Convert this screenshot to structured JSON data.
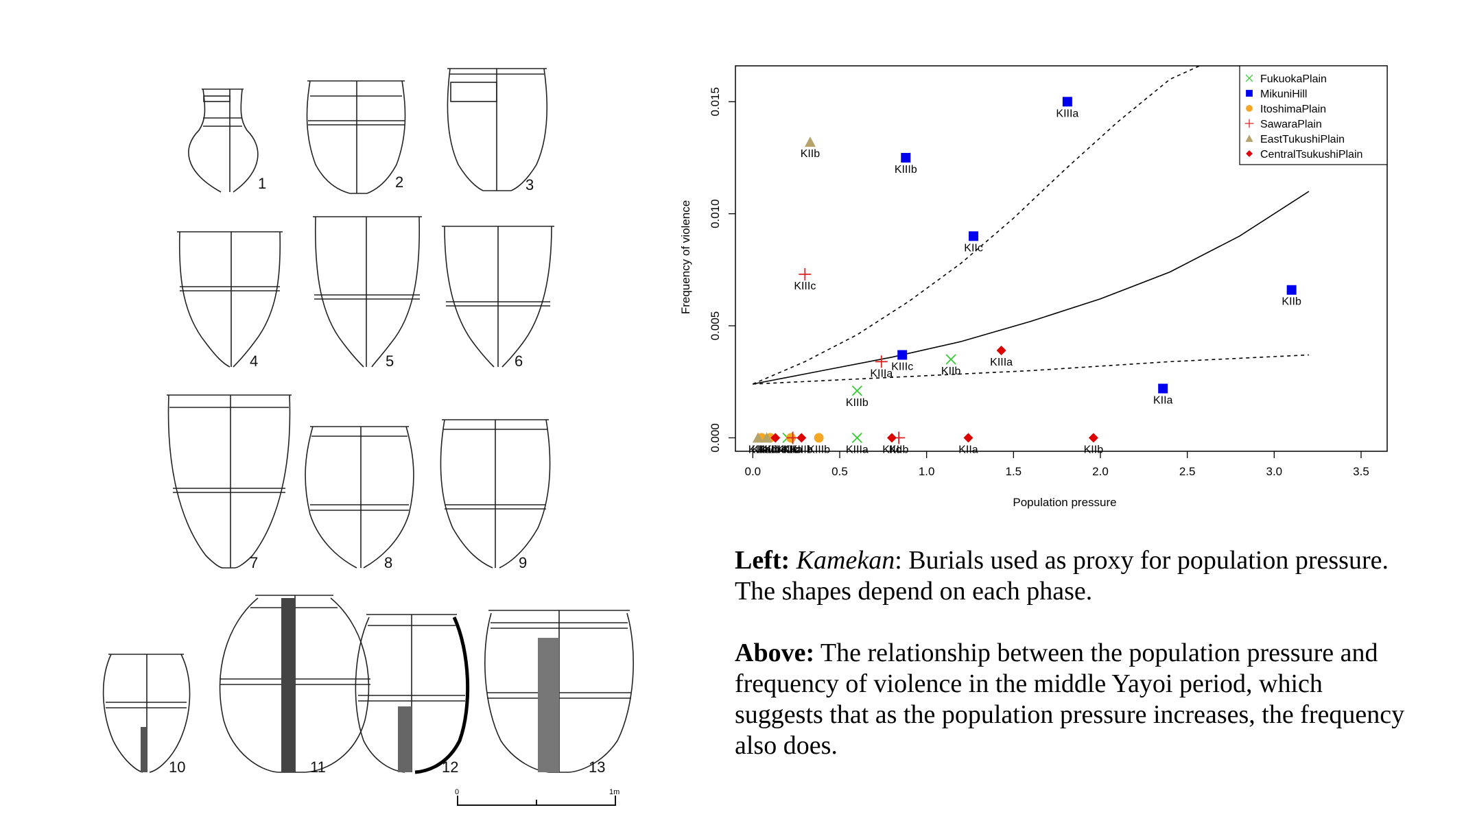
{
  "jars": {
    "numbers": [
      "1",
      "2",
      "3",
      "4",
      "5",
      "6",
      "7",
      "8",
      "9",
      "10",
      "11",
      "12",
      "13"
    ],
    "scale": {
      "start": "0",
      "end": "1m"
    }
  },
  "chart_data": {
    "type": "scatter",
    "xlabel": "Population pressure",
    "ylabel": "Frequency of violence",
    "xlim": [
      -0.1,
      3.65
    ],
    "ylim": [
      -0.0006,
      0.0166
    ],
    "xticks": [
      0.0,
      0.5,
      1.0,
      1.5,
      2.0,
      2.5,
      3.0,
      3.5
    ],
    "xtick_labels": [
      "0.0",
      "0.5",
      "1.0",
      "1.5",
      "2.0",
      "2.5",
      "3.0",
      "3.5"
    ],
    "yticks": [
      0.0,
      0.005,
      0.01,
      0.015
    ],
    "ytick_labels": [
      "0.000",
      "0.005",
      "0.010",
      "0.015"
    ],
    "grid": false,
    "legend_position": "top-right",
    "series": [
      {
        "name": "FukuokaPlain",
        "marker": "x",
        "color": "#33cc33",
        "points": [
          {
            "x": 0.6,
            "y": 0.0021,
            "label": "KIIIb"
          },
          {
            "x": 1.14,
            "y": 0.0035,
            "label": "KIIb"
          },
          {
            "x": 0.6,
            "y": 0.0,
            "label": "KIIIa"
          },
          {
            "x": 0.2,
            "y": 0.0,
            "label": "KIIIc"
          }
        ]
      },
      {
        "name": "MikuniHill",
        "marker": "square",
        "color": "#0000ee",
        "points": [
          {
            "x": 1.81,
            "y": 0.015,
            "label": "KIIIa"
          },
          {
            "x": 0.88,
            "y": 0.0125,
            "label": "KIIIb"
          },
          {
            "x": 1.27,
            "y": 0.009,
            "label": "KIIc"
          },
          {
            "x": 3.1,
            "y": 0.0066,
            "label": "KIIb"
          },
          {
            "x": 0.86,
            "y": 0.0037,
            "label": "KIIIc"
          },
          {
            "x": 2.36,
            "y": 0.0022,
            "label": "KIIa"
          }
        ]
      },
      {
        "name": "ItoshimaPlain",
        "marker": "circle",
        "color": "#f5a623",
        "points": [
          {
            "x": 0.05,
            "y": 0.0,
            "label": "KIIa"
          },
          {
            "x": 0.1,
            "y": 0.0,
            "label": "KIIb"
          },
          {
            "x": 0.22,
            "y": 0.0,
            "label": "KIIc"
          },
          {
            "x": 0.38,
            "y": 0.0,
            "label": "KIIIb"
          }
        ]
      },
      {
        "name": "SawaraPlain",
        "marker": "plus",
        "color": "#dd2222",
        "points": [
          {
            "x": 0.3,
            "y": 0.0073,
            "label": "KIIIc"
          },
          {
            "x": 0.74,
            "y": 0.0034,
            "label": "KIIIa"
          },
          {
            "x": 0.84,
            "y": 0.0,
            "label": "KIIb"
          },
          {
            "x": 0.23,
            "y": 0.0,
            "label": "KIIa"
          }
        ]
      },
      {
        "name": "EastTukushiPlain",
        "marker": "triangle",
        "color": "#b5a36a",
        "points": [
          {
            "x": 0.33,
            "y": 0.0132,
            "label": "KIIb"
          },
          {
            "x": 0.03,
            "y": 0.0,
            "label": "KIIa"
          },
          {
            "x": 0.08,
            "y": 0.0,
            "label": "KIIc"
          }
        ]
      },
      {
        "name": "CentralTsukushiPlain",
        "marker": "diamond",
        "color": "#dd0000",
        "points": [
          {
            "x": 1.43,
            "y": 0.0039,
            "label": "KIIIa"
          },
          {
            "x": 1.24,
            "y": 0.0,
            "label": "KIIa"
          },
          {
            "x": 1.96,
            "y": 0.0,
            "label": "KIIb"
          },
          {
            "x": 0.8,
            "y": 0.0,
            "label": "KIIc"
          },
          {
            "x": 0.28,
            "y": 0.0,
            "label": "KIIIb"
          },
          {
            "x": 0.13,
            "y": 0.0,
            "label": "KIIIc"
          }
        ]
      }
    ],
    "curves": [
      {
        "style": "solid",
        "color": "#000000",
        "x": [
          0.0,
          0.4,
          0.8,
          1.2,
          1.6,
          2.0,
          2.4,
          2.8,
          3.2
        ],
        "y": [
          0.0024,
          0.003,
          0.0036,
          0.0043,
          0.0052,
          0.0062,
          0.0074,
          0.009,
          0.011
        ]
      },
      {
        "style": "dashed",
        "color": "#000000",
        "x": [
          0.0,
          0.3,
          0.6,
          0.9,
          1.2,
          1.5,
          1.8,
          2.1,
          2.4,
          2.6
        ],
        "y": [
          0.0024,
          0.0034,
          0.0046,
          0.0061,
          0.0078,
          0.0098,
          0.012,
          0.0141,
          0.016,
          0.0167
        ]
      },
      {
        "style": "dashed",
        "color": "#000000",
        "x": [
          0.0,
          0.8,
          1.6,
          2.4,
          3.2
        ],
        "y": [
          0.0024,
          0.0027,
          0.003,
          0.0034,
          0.0037
        ]
      }
    ]
  },
  "caption": {
    "p1_bold": "Left:",
    "p1_italic": "Kamekan",
    "p1_rest": ": Burials used as proxy for population pressure. The shapes depend on each phase.",
    "p2_bold": "Above:",
    "p2_rest": " The relationship between the population pressure and frequency of violence in the middle Yayoi period, which suggests that as the population pressure increases, the frequency also does."
  }
}
